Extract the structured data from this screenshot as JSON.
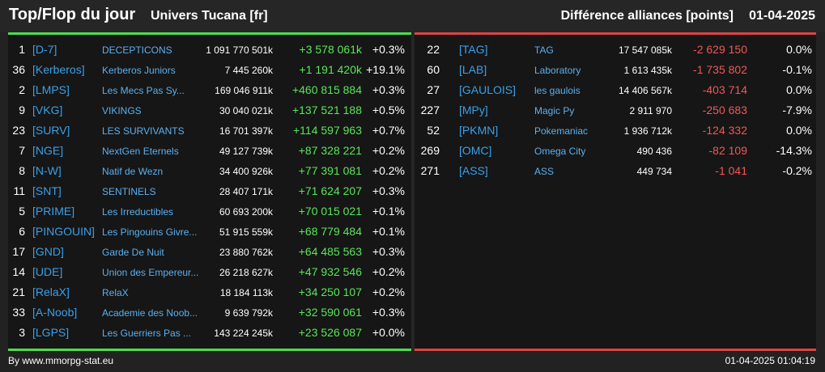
{
  "header": {
    "title": "Top/Flop du jour",
    "universe": "Univers Tucana [fr]",
    "metric": "Différence alliances [points]",
    "date": "01-04-2025"
  },
  "colors": {
    "background": "#222222",
    "panel": "#161616",
    "top_accent": "#4fdc4f",
    "flop_accent": "#dc4444",
    "tag": "#3aa0e8",
    "name": "#5ab0f0",
    "positive": "#59e659",
    "negative": "#f25656"
  },
  "top": [
    {
      "rank": "1",
      "tag": "[D-7]",
      "name": "DECEPTICONS",
      "points": "1 091 770 501k",
      "diff": "+3 578 061k",
      "pct": "+0.3%"
    },
    {
      "rank": "36",
      "tag": "[Kerberos]",
      "name": "Kerberos Juniors",
      "points": "7 445 260k",
      "diff": "+1 191 420k",
      "pct": "+19.1%"
    },
    {
      "rank": "2",
      "tag": "[LMPS]",
      "name": "Les Mecs Pas Sy...",
      "points": "169 046 911k",
      "diff": "+460 815 884",
      "pct": "+0.3%"
    },
    {
      "rank": "9",
      "tag": "[VKG]",
      "name": "VIKINGS",
      "points": "30 040 021k",
      "diff": "+137 521 188",
      "pct": "+0.5%"
    },
    {
      "rank": "23",
      "tag": "[SURV]",
      "name": "LES SURVIVANTS",
      "points": "16 701 397k",
      "diff": "+114 597 963",
      "pct": "+0.7%"
    },
    {
      "rank": "7",
      "tag": "[NGE]",
      "name": "NextGen Eternels",
      "points": "49 127 739k",
      "diff": "+87 328 221",
      "pct": "+0.2%"
    },
    {
      "rank": "8",
      "tag": "[N-W]",
      "name": "Natif de Wezn",
      "points": "34 400 926k",
      "diff": "+77 391 081",
      "pct": "+0.2%"
    },
    {
      "rank": "11",
      "tag": "[SNT]",
      "name": "SENTINELS",
      "points": "28 407 171k",
      "diff": "+71 624 207",
      "pct": "+0.3%"
    },
    {
      "rank": "5",
      "tag": "[PRIME]",
      "name": "Les Irreductibles",
      "points": "60 693 200k",
      "diff": "+70 015 021",
      "pct": "+0.1%"
    },
    {
      "rank": "6",
      "tag": "[PINGOUIN]",
      "name": "Les Pingouins Givre...",
      "points": "51 915 559k",
      "diff": "+68 779 484",
      "pct": "+0.1%"
    },
    {
      "rank": "17",
      "tag": "[GND]",
      "name": "Garde De Nuit",
      "points": "23 880 762k",
      "diff": "+64 485 563",
      "pct": "+0.3%"
    },
    {
      "rank": "14",
      "tag": "[UDE]",
      "name": "Union des Empereur...",
      "points": "26 218 627k",
      "diff": "+47 932 546",
      "pct": "+0.2%"
    },
    {
      "rank": "21",
      "tag": "[RelaX]",
      "name": "RelaX",
      "points": "18 184 113k",
      "diff": "+34 250 107",
      "pct": "+0.2%"
    },
    {
      "rank": "33",
      "tag": "[A-Noob]",
      "name": "Academie des Noob...",
      "points": "9 639 792k",
      "diff": "+32 590 061",
      "pct": "+0.3%"
    },
    {
      "rank": "3",
      "tag": "[LGPS]",
      "name": "Les Guerriers Pas ...",
      "points": "143 224 245k",
      "diff": "+23 526 087",
      "pct": "+0.0%"
    }
  ],
  "flop": [
    {
      "rank": "22",
      "tag": "[TAG]",
      "name": "TAG",
      "points": "17 547 085k",
      "diff": "-2 629 150",
      "pct": "0.0%"
    },
    {
      "rank": "60",
      "tag": "[LAB]",
      "name": "Laboratory",
      "points": "1 613 435k",
      "diff": "-1 735 802",
      "pct": "-0.1%"
    },
    {
      "rank": "27",
      "tag": "[GAULOIS]",
      "name": "les gaulois",
      "points": "14 406 567k",
      "diff": "-403 714",
      "pct": "0.0%"
    },
    {
      "rank": "227",
      "tag": "[MPy]",
      "name": "Magic Py",
      "points": "2 911 970",
      "diff": "-250 683",
      "pct": "-7.9%"
    },
    {
      "rank": "52",
      "tag": "[PKMN]",
      "name": "Pokemaniac",
      "points": "1 936 712k",
      "diff": "-124 332",
      "pct": "0.0%"
    },
    {
      "rank": "269",
      "tag": "[OMC]",
      "name": "Omega City",
      "points": "490 436",
      "diff": "-82 109",
      "pct": "-14.3%"
    },
    {
      "rank": "271",
      "tag": "[ASS]",
      "name": "ASS",
      "points": "449 734",
      "diff": "-1 041",
      "pct": "-0.2%"
    }
  ],
  "footer": {
    "credit": "By www.mmorpg-stat.eu",
    "timestamp": "01-04-2025 01:04:19"
  }
}
